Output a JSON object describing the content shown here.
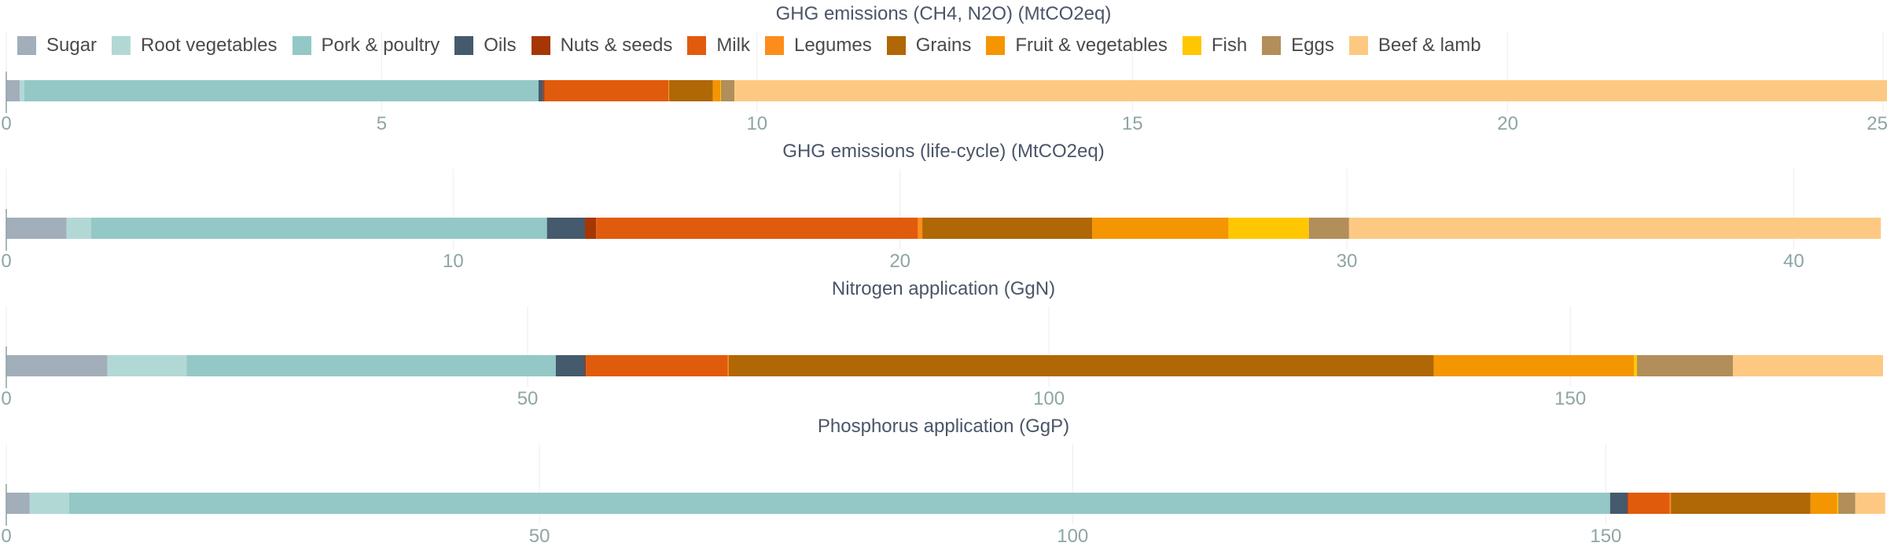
{
  "legend": {
    "position": "top",
    "items": [
      {
        "name": "Sugar",
        "color": "#a2aeba"
      },
      {
        "name": "Root vegetables",
        "color": "#b2d8d6"
      },
      {
        "name": "Pork & poultry",
        "color": "#93c8c7"
      },
      {
        "name": "Oils",
        "color": "#455a6d"
      },
      {
        "name": "Nuts & seeds",
        "color": "#a63603"
      },
      {
        "name": "Milk",
        "color": "#e15b0c"
      },
      {
        "name": "Legumes",
        "color": "#fd8d1a"
      },
      {
        "name": "Grains",
        "color": "#b06705"
      },
      {
        "name": "Fruit & vegetables",
        "color": "#f49502"
      },
      {
        "name": "Fish",
        "color": "#ffc701"
      },
      {
        "name": "Eggs",
        "color": "#b28e5a"
      },
      {
        "name": "Beef & lamb",
        "color": "#fdc982"
      }
    ]
  },
  "chart_data": [
    {
      "type": "bar",
      "orientation": "horizontal",
      "stacked": true,
      "title": "GHG emissions (CH4, N2O) (MtCO2eq)",
      "xlim": [
        0,
        25
      ],
      "xticks": [
        0,
        5,
        10,
        15,
        20,
        25
      ],
      "grid": true,
      "segments": [
        {
          "name": "Sugar",
          "value": 0.18
        },
        {
          "name": "Root vegetables",
          "value": 0.06
        },
        {
          "name": "Pork & poultry",
          "value": 6.85
        },
        {
          "name": "Oils",
          "value": 0.06
        },
        {
          "name": "Nuts & seeds",
          "value": 0.02
        },
        {
          "name": "Milk",
          "value": 1.65
        },
        {
          "name": "Legumes",
          "value": 0.01
        },
        {
          "name": "Grains",
          "value": 0.58
        },
        {
          "name": "Fruit & vegetables",
          "value": 0.1
        },
        {
          "name": "Fish",
          "value": 0.01
        },
        {
          "name": "Eggs",
          "value": 0.18
        },
        {
          "name": "Beef & lamb",
          "value": 15.4
        }
      ]
    },
    {
      "type": "bar",
      "orientation": "horizontal",
      "stacked": true,
      "title": "GHG emissions (life-cycle) (MtCO2eq)",
      "xlim": [
        0,
        42
      ],
      "xticks": [
        0,
        10,
        20,
        30,
        40
      ],
      "grid": true,
      "segments": [
        {
          "name": "Sugar",
          "value": 1.35
        },
        {
          "name": "Root vegetables",
          "value": 0.55
        },
        {
          "name": "Pork & poultry",
          "value": 10.2
        },
        {
          "name": "Oils",
          "value": 0.85
        },
        {
          "name": "Nuts & seeds",
          "value": 0.25
        },
        {
          "name": "Milk",
          "value": 7.2
        },
        {
          "name": "Legumes",
          "value": 0.1
        },
        {
          "name": "Grains",
          "value": 3.8
        },
        {
          "name": "Fruit & vegetables",
          "value": 3.05
        },
        {
          "name": "Fish",
          "value": 1.8
        },
        {
          "name": "Eggs",
          "value": 0.9
        },
        {
          "name": "Beef & lamb",
          "value": 11.9
        }
      ]
    },
    {
      "type": "bar",
      "orientation": "horizontal",
      "stacked": true,
      "title": "Nitrogen application (GgN)",
      "xlim": [
        0,
        180
      ],
      "xticks": [
        0,
        50,
        100,
        150
      ],
      "grid": true,
      "segments": [
        {
          "name": "Sugar",
          "value": 9.7
        },
        {
          "name": "Root vegetables",
          "value": 7.6
        },
        {
          "name": "Pork & poultry",
          "value": 35.4
        },
        {
          "name": "Oils",
          "value": 2.8
        },
        {
          "name": "Nuts & seeds",
          "value": 0.1
        },
        {
          "name": "Milk",
          "value": 13.6
        },
        {
          "name": "Legumes",
          "value": 0.1
        },
        {
          "name": "Grains",
          "value": 67.6
        },
        {
          "name": "Fruit & vegetables",
          "value": 19.2
        },
        {
          "name": "Fish",
          "value": 0.3
        },
        {
          "name": "Eggs",
          "value": 9.2
        },
        {
          "name": "Beef & lamb",
          "value": 14.4
        }
      ]
    },
    {
      "type": "bar",
      "orientation": "horizontal",
      "stacked": true,
      "title": "Phosphorus application (GgP)",
      "xlim": [
        0,
        176
      ],
      "xticks": [
        0,
        50,
        100,
        150
      ],
      "grid": true,
      "segments": [
        {
          "name": "Sugar",
          "value": 2.2
        },
        {
          "name": "Root vegetables",
          "value": 3.7
        },
        {
          "name": "Pork & poultry",
          "value": 144.5
        },
        {
          "name": "Oils",
          "value": 1.6
        },
        {
          "name": "Nuts & seeds",
          "value": 0.1
        },
        {
          "name": "Milk",
          "value": 3.9
        },
        {
          "name": "Legumes",
          "value": 0.1
        },
        {
          "name": "Grains",
          "value": 13.1
        },
        {
          "name": "Fruit & vegetables",
          "value": 2.5
        },
        {
          "name": "Fish",
          "value": 0.1
        },
        {
          "name": "Eggs",
          "value": 1.6
        },
        {
          "name": "Beef & lamb",
          "value": 2.8
        }
      ]
    }
  ]
}
